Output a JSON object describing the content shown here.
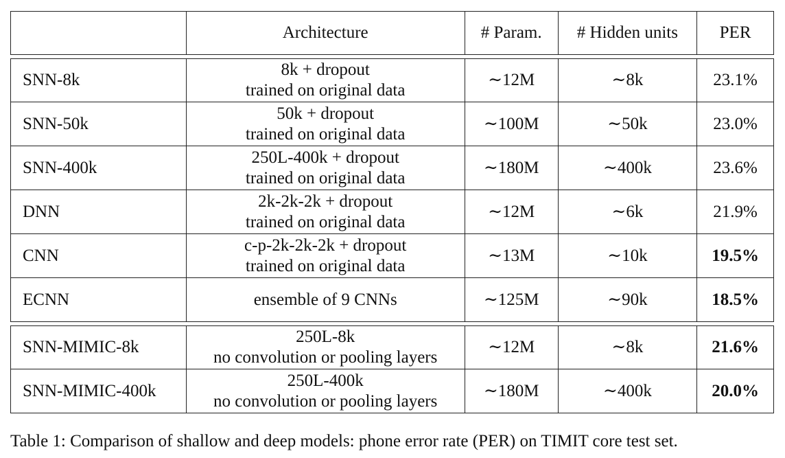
{
  "table": {
    "headers": [
      "",
      "Architecture",
      "# Param.",
      "# Hidden units",
      "PER"
    ],
    "groups": [
      [
        {
          "model": "SNN-8k",
          "arch_line1": "8k + dropout",
          "arch_line2": "trained on original data",
          "params": "∼12M",
          "hidden": "∼8k",
          "per": "23.1%",
          "per_bold": false
        },
        {
          "model": "SNN-50k",
          "arch_line1": "50k + dropout",
          "arch_line2": "trained on original data",
          "params": "∼100M",
          "hidden": "∼50k",
          "per": "23.0%",
          "per_bold": false
        },
        {
          "model": "SNN-400k",
          "arch_line1": "250L-400k + dropout",
          "arch_line2": "trained on original data",
          "params": "∼180M",
          "hidden": "∼400k",
          "per": "23.6%",
          "per_bold": false
        },
        {
          "model": "DNN",
          "arch_line1": "2k-2k-2k + dropout",
          "arch_line2": "trained on original data",
          "params": "∼12M",
          "hidden": "∼6k",
          "per": "21.9%",
          "per_bold": false
        },
        {
          "model": "CNN",
          "arch_line1": "c-p-2k-2k-2k + dropout",
          "arch_line2": "trained on original data",
          "params": "∼13M",
          "hidden": "∼10k",
          "per": "19.5%",
          "per_bold": true
        },
        {
          "model": "ECNN",
          "arch_line1": "ensemble of 9 CNNs",
          "arch_line2": "",
          "params": "∼125M",
          "hidden": "∼90k",
          "per": "18.5%",
          "per_bold": true
        }
      ],
      [
        {
          "model": "SNN-MIMIC-8k",
          "arch_line1": "250L-8k",
          "arch_line2": "no convolution or pooling layers",
          "params": "∼12M",
          "hidden": "∼8k",
          "per": "21.6%",
          "per_bold": true
        },
        {
          "model": "SNN-MIMIC-400k",
          "arch_line1": "250L-400k",
          "arch_line2": "no convolution or pooling layers",
          "params": "∼180M",
          "hidden": "∼400k",
          "per": "20.0%",
          "per_bold": true
        }
      ]
    ]
  },
  "caption": "Table 1: Comparison of shallow and deep models: phone error rate (PER) on TIMIT core test set."
}
